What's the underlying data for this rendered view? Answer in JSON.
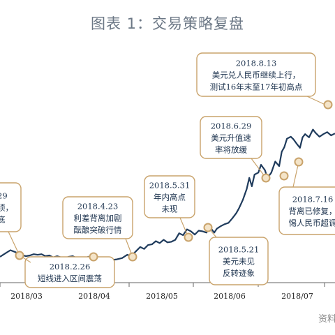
{
  "figure": {
    "title": "图表 1：交易策略复盘",
    "source_fragment": "资料"
  },
  "colors": {
    "line": "#1f3b5c",
    "callout_border": "#c9a36b",
    "marker_fill": "#f4e4c8",
    "marker_stroke": "#c9a36b",
    "axis": "#666666"
  },
  "chart_data": {
    "type": "line",
    "title": "图表 1：交易策略复盘",
    "x_tick_labels": [
      "2018/03",
      "2018/04",
      "2018/05",
      "2018/06",
      "2018/07"
    ],
    "series": [
      {
        "values": [
          [
            -1.0,
            29.0
          ],
          [
            -0.8,
            34.0
          ],
          [
            -0.6,
            39.0
          ],
          [
            -0.4,
            36.0
          ],
          [
            -0.2,
            32.0
          ],
          [
            0.0,
            30.0
          ],
          [
            0.15,
            31.0
          ],
          [
            0.3,
            33.0
          ],
          [
            0.45,
            32.0
          ],
          [
            0.6,
            33.0
          ],
          [
            0.75,
            30.0
          ],
          [
            0.9,
            31.0
          ],
          [
            1.05,
            28.0
          ],
          [
            1.2,
            30.0
          ],
          [
            1.35,
            28.0
          ],
          [
            1.5,
            27.0
          ],
          [
            1.65,
            29.0
          ],
          [
            1.8,
            30.0
          ],
          [
            1.95,
            27.0
          ],
          [
            2.1,
            25.0
          ],
          [
            2.25,
            26.0
          ],
          [
            2.4,
            29.0
          ],
          [
            2.55,
            27.0
          ],
          [
            2.7,
            26.0
          ],
          [
            2.85,
            24.0
          ],
          [
            3.0,
            27.0
          ],
          [
            3.15,
            25.0
          ],
          [
            3.3,
            24.0
          ],
          [
            3.5,
            25.0
          ],
          [
            3.7,
            27.0
          ],
          [
            3.9,
            32.0
          ],
          [
            4.05,
            30.0
          ],
          [
            4.2,
            36.0
          ],
          [
            4.4,
            44.0
          ],
          [
            4.55,
            41.0
          ],
          [
            4.7,
            47.0
          ],
          [
            4.85,
            48.0
          ],
          [
            5.0,
            53.0
          ],
          [
            5.15,
            50.0
          ],
          [
            5.3,
            55.0
          ],
          [
            5.45,
            51.0
          ],
          [
            5.6,
            52.0
          ],
          [
            5.75,
            55.0
          ],
          [
            5.9,
            65.0
          ],
          [
            6.05,
            62.0
          ],
          [
            6.2,
            71.0
          ],
          [
            6.35,
            68.0
          ],
          [
            6.5,
            63.0
          ],
          [
            6.65,
            69.0
          ],
          [
            6.8,
            68.0
          ],
          [
            6.95,
            66.0
          ],
          [
            7.05,
            73.0
          ],
          [
            7.15,
            71.0
          ],
          [
            7.25,
            66.0
          ],
          [
            7.35,
            72.0
          ],
          [
            7.5,
            76.0
          ],
          [
            7.65,
            79.0
          ],
          [
            7.8,
            81.0
          ],
          [
            7.95,
            88.0
          ],
          [
            8.1,
            96.0
          ],
          [
            8.2,
            103.0
          ],
          [
            8.35,
            116.0
          ],
          [
            8.5,
            133.0
          ],
          [
            8.6,
            150.0
          ],
          [
            8.7,
            137.0
          ],
          [
            8.8,
            155.0
          ],
          [
            8.95,
            158.0
          ],
          [
            9.05,
            170.0
          ],
          [
            9.2,
            162.0
          ],
          [
            9.3,
            150.0
          ],
          [
            9.45,
            158.0
          ],
          [
            9.6,
            175.0
          ],
          [
            9.75,
            168.0
          ],
          [
            9.85,
            190.0
          ],
          [
            9.95,
            197.0
          ],
          [
            10.05,
            210.0
          ],
          [
            10.2,
            213.0
          ],
          [
            10.3,
            209.0
          ],
          [
            10.45,
            201.0
          ],
          [
            10.55,
            196.0
          ],
          [
            10.65,
            212.0
          ],
          [
            10.75,
            217.0
          ],
          [
            10.9,
            212.0
          ],
          [
            11.05,
            224.0
          ],
          [
            11.15,
            219.0
          ],
          [
            11.3,
            213.0
          ],
          [
            11.45,
            217.0
          ],
          [
            11.6,
            220.0
          ],
          [
            11.75,
            215.0
          ],
          [
            11.9,
            218.0
          ]
        ]
      }
    ],
    "markers": [
      {
        "x": 0.9,
        "y": 28.0
      },
      {
        "x": 2.0,
        "y": 26.0
      },
      {
        "x": 3.8,
        "y": 31.0
      },
      {
        "x": 5.0,
        "y": 53.0
      },
      {
        "x": 5.5,
        "y": 60.0
      },
      {
        "x": 7.5,
        "y": 130.0
      },
      {
        "x": 8.6,
        "y": 150.0
      },
      {
        "x": 9.05,
        "y": 170.0
      },
      {
        "x": 10.9,
        "y": 212.0
      }
    ],
    "callouts": [
      {
        "lines": [
          "29",
          "顷，",
          "底"
        ]
      },
      {
        "lines": [
          "2018.2.26",
          "短线进入区间震荡"
        ]
      },
      {
        "lines": [
          "2018.4.23",
          "利差背离加剧",
          "酝酿突破行情"
        ]
      },
      {
        "lines": [
          "2018.5.31",
          "年内高点",
          "未现"
        ]
      },
      {
        "lines": [
          "2018.5.21",
          "美元未见",
          "反转迹象"
        ]
      },
      {
        "lines": [
          "2018.6.29",
          "美元升值速",
          "率将放缓"
        ]
      },
      {
        "lines": [
          "2018.7.16",
          "背离已修复，",
          "惕人民币超调"
        ]
      },
      {
        "lines": [
          "2018.8.13",
          "美元兑人民币继续上行，",
          "测试16年末至17年初高点"
        ]
      }
    ]
  }
}
